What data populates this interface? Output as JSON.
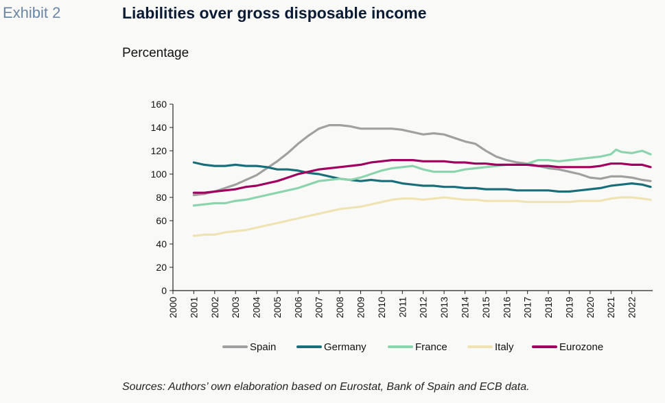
{
  "header": {
    "exhibit": "Exhibit 2",
    "title": "Liabilities over gross disposable income",
    "subtitle": "Percentage"
  },
  "footer": {
    "source": "Sources: Authors’ own elaboration based on Eurostat, Bank of Spain and ECB data."
  },
  "chart_data": {
    "type": "line",
    "title": "Liabilities over gross disposable income",
    "ylabel": "Percentage",
    "xlabel": "",
    "xlim": [
      2000,
      2023
    ],
    "ylim": [
      0,
      160
    ],
    "yticks": [
      0,
      20,
      40,
      60,
      80,
      100,
      120,
      140,
      160
    ],
    "xticks": [
      2000,
      2001,
      2002,
      2003,
      2004,
      2005,
      2006,
      2007,
      2008,
      2009,
      2010,
      2011,
      2012,
      2013,
      2014,
      2015,
      2016,
      2017,
      2018,
      2019,
      2020,
      2021,
      2022
    ],
    "grid": false,
    "legend": "bottom",
    "series": [
      {
        "name": "Spain",
        "color": "#a0a0a0",
        "x": [
          2001,
          2001.5,
          2002,
          2002.5,
          2003,
          2003.5,
          2004,
          2004.5,
          2005,
          2005.5,
          2006,
          2006.5,
          2007,
          2007.5,
          2008,
          2008.5,
          2009,
          2009.5,
          2010,
          2010.5,
          2011,
          2011.5,
          2012,
          2012.5,
          2013,
          2013.5,
          2014,
          2014.5,
          2015,
          2015.5,
          2016,
          2016.5,
          2017,
          2017.5,
          2018,
          2018.5,
          2019,
          2019.5,
          2020,
          2020.5,
          2021,
          2021.5,
          2022,
          2022.5,
          2022.9
        ],
        "y": [
          82,
          83,
          85,
          88,
          91,
          95,
          99,
          105,
          111,
          118,
          126,
          133,
          139,
          142,
          142,
          141,
          139,
          139,
          139,
          139,
          138,
          136,
          134,
          135,
          134,
          131,
          128,
          126,
          120,
          115,
          112,
          110,
          109,
          107,
          105,
          104,
          102,
          100,
          97,
          96,
          98,
          98,
          97,
          95,
          94
        ]
      },
      {
        "name": "Germany",
        "color": "#186e79",
        "x": [
          2001,
          2001.5,
          2002,
          2002.5,
          2003,
          2003.5,
          2004,
          2004.5,
          2005,
          2005.5,
          2006,
          2006.5,
          2007,
          2007.5,
          2008,
          2008.5,
          2009,
          2009.5,
          2010,
          2010.5,
          2011,
          2011.5,
          2012,
          2012.5,
          2013,
          2013.5,
          2014,
          2014.5,
          2015,
          2015.5,
          2016,
          2016.5,
          2017,
          2017.5,
          2018,
          2018.5,
          2019,
          2019.5,
          2020,
          2020.5,
          2021,
          2021.5,
          2022,
          2022.5,
          2022.9
        ],
        "y": [
          110,
          108,
          107,
          107,
          108,
          107,
          107,
          106,
          104,
          104,
          103,
          101,
          100,
          98,
          96,
          95,
          94,
          95,
          94,
          94,
          92,
          91,
          90,
          90,
          89,
          89,
          88,
          88,
          87,
          87,
          87,
          86,
          86,
          86,
          86,
          85,
          85,
          86,
          87,
          88,
          90,
          91,
          92,
          91,
          89
        ]
      },
      {
        "name": "France",
        "color": "#8cd4ad",
        "x": [
          2001,
          2001.5,
          2002,
          2002.5,
          2003,
          2003.5,
          2004,
          2004.5,
          2005,
          2005.5,
          2006,
          2006.5,
          2007,
          2007.5,
          2008,
          2008.5,
          2009,
          2009.5,
          2010,
          2010.5,
          2011,
          2011.5,
          2012,
          2012.5,
          2013,
          2013.5,
          2014,
          2014.5,
          2015,
          2015.5,
          2016,
          2016.5,
          2017,
          2017.5,
          2018,
          2018.5,
          2019,
          2019.5,
          2020,
          2020.5,
          2021,
          2021.25,
          2021.5,
          2022,
          2022.5,
          2022.9
        ],
        "y": [
          73,
          74,
          75,
          75,
          77,
          78,
          80,
          82,
          84,
          86,
          88,
          91,
          94,
          95,
          96,
          95,
          97,
          100,
          103,
          105,
          106,
          107,
          104,
          102,
          102,
          102,
          104,
          105,
          106,
          107,
          108,
          108,
          109,
          112,
          112,
          111,
          112,
          113,
          114,
          115,
          117,
          121,
          119,
          118,
          120,
          117
        ]
      },
      {
        "name": "Italy",
        "color": "#efe3b4",
        "x": [
          2001,
          2001.5,
          2002,
          2002.5,
          2003,
          2003.5,
          2004,
          2004.5,
          2005,
          2005.5,
          2006,
          2006.5,
          2007,
          2007.5,
          2008,
          2008.5,
          2009,
          2009.5,
          2010,
          2010.5,
          2011,
          2011.5,
          2012,
          2012.5,
          2013,
          2013.5,
          2014,
          2014.5,
          2015,
          2015.5,
          2016,
          2016.5,
          2017,
          2017.5,
          2018,
          2018.5,
          2019,
          2019.5,
          2020,
          2020.5,
          2021,
          2021.5,
          2022,
          2022.5,
          2022.9
        ],
        "y": [
          47,
          48,
          48,
          50,
          51,
          52,
          54,
          56,
          58,
          60,
          62,
          64,
          66,
          68,
          70,
          71,
          72,
          74,
          76,
          78,
          79,
          79,
          78,
          79,
          80,
          79,
          78,
          78,
          77,
          77,
          77,
          77,
          76,
          76,
          76,
          76,
          76,
          77,
          77,
          77,
          79,
          80,
          80,
          79,
          78
        ]
      },
      {
        "name": "Eurozone",
        "color": "#a0005e",
        "x": [
          2001,
          2001.5,
          2002,
          2002.5,
          2003,
          2003.5,
          2004,
          2004.5,
          2005,
          2005.5,
          2006,
          2006.5,
          2007,
          2007.5,
          2008,
          2008.5,
          2009,
          2009.5,
          2010,
          2010.5,
          2011,
          2011.5,
          2012,
          2012.5,
          2013,
          2013.5,
          2014,
          2014.5,
          2015,
          2015.5,
          2016,
          2016.5,
          2017,
          2017.5,
          2018,
          2018.5,
          2019,
          2019.5,
          2020,
          2020.5,
          2021,
          2021.5,
          2022,
          2022.5,
          2022.9
        ],
        "y": [
          84,
          84,
          85,
          86,
          87,
          89,
          90,
          92,
          94,
          97,
          100,
          102,
          104,
          105,
          106,
          107,
          108,
          110,
          111,
          112,
          112,
          112,
          111,
          111,
          111,
          110,
          110,
          109,
          109,
          108,
          108,
          108,
          108,
          107,
          107,
          106,
          106,
          106,
          106,
          107,
          109,
          109,
          108,
          108,
          106
        ]
      }
    ]
  }
}
